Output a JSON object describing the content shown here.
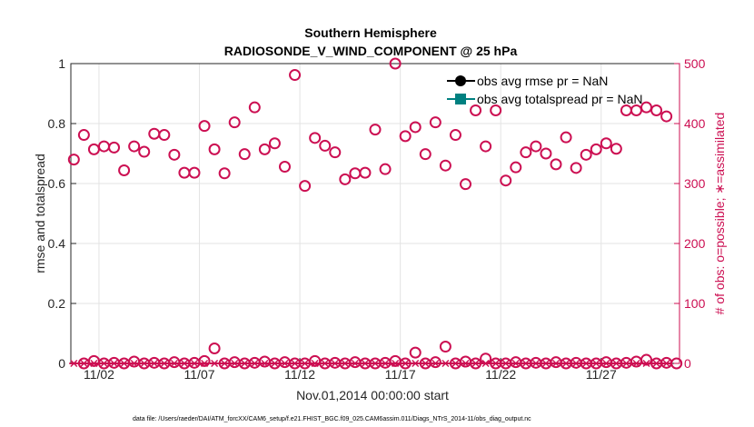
{
  "chart_data": {
    "type": "scatter",
    "title": "Southern Hemisphere",
    "subtitle": "RADIOSONDE_V_WIND_COMPONENT @ 25 hPa",
    "xlabel": "Nov.01,2014 00:00:00 start",
    "ylabel": "rmse and totalspread",
    "y2label": "# of obs: o=possible; ∗=assimilated",
    "xlim": [
      0.6,
      30.9
    ],
    "ylim": [
      0,
      1
    ],
    "y2lim": [
      0,
      500
    ],
    "xticks": [
      2,
      7,
      12,
      17,
      22,
      27
    ],
    "xtick_labels": [
      "11/02",
      "11/07",
      "11/12",
      "11/17",
      "11/22",
      "11/27"
    ],
    "yticks": [
      0,
      0.2,
      0.4,
      0.6,
      0.8,
      1
    ],
    "ytick_labels": [
      "0",
      "0.2",
      "0.4",
      "0.6",
      "0.8",
      "1"
    ],
    "y2ticks": [
      0,
      100,
      200,
      300,
      400,
      500
    ],
    "y2tick_labels": [
      "0",
      "100",
      "200",
      "300",
      "400",
      "500"
    ],
    "legend": [
      {
        "label": "obs avg rmse pr = NaN",
        "color": "#000000",
        "marker": "circle"
      },
      {
        "label": "obs avg totalspread pr = NaN",
        "color": "#008080",
        "marker": "square"
      }
    ],
    "legend_position": "top-right",
    "footer": "data file: /Users/raeder/DAI/ATM_forcXX/CAM6_setup/f.e21.FHIST_BGC.f09_025.CAM6assim.011/Diags_NTrS_2014-11/obs_diag_output.nc",
    "colors": {
      "obs": "#cc0f52",
      "axis": "#262626",
      "grid": "#e3e3e3"
    },
    "series": [
      {
        "name": "possible obs (o)",
        "axis": "right",
        "x": [
          0.75,
          1.25,
          1.75,
          2.25,
          2.75,
          3.25,
          3.75,
          4.25,
          4.75,
          5.25,
          5.75,
          6.25,
          6.75,
          7.25,
          7.75,
          8.25,
          8.75,
          9.25,
          9.75,
          10.25,
          10.75,
          11.25,
          11.75,
          12.25,
          12.75,
          13.25,
          13.75,
          14.25,
          14.75,
          15.25,
          15.75,
          16.25,
          16.75,
          17.25,
          17.75,
          18.25,
          18.75,
          19.25,
          19.75,
          20.25,
          20.75,
          21.25,
          21.75,
          22.25,
          22.75,
          23.25,
          23.75,
          24.25,
          24.75,
          25.25,
          25.75,
          26.25,
          26.75,
          27.25,
          27.75,
          28.25,
          28.75,
          29.25,
          29.75,
          30.25
        ],
        "values": [
          340,
          381,
          357,
          362,
          360,
          322,
          362,
          353,
          383,
          381,
          348,
          318,
          318,
          396,
          357,
          317,
          402,
          349,
          427,
          357,
          367,
          328,
          481,
          296,
          376,
          363,
          352,
          307,
          317,
          318,
          390,
          324,
          500,
          379,
          394,
          349,
          402,
          330,
          381,
          299,
          422,
          362,
          422,
          305,
          327,
          352,
          362,
          350,
          332,
          377,
          326,
          348,
          357,
          367,
          358,
          422,
          422,
          427,
          422,
          412
        ]
      },
      {
        "name": "assimilated obs (∗)",
        "axis": "right",
        "x": [
          0.75,
          1.25,
          1.75,
          2.25,
          2.75,
          3.25,
          3.75,
          4.25,
          4.75,
          5.25,
          5.75,
          6.25,
          6.75,
          7.25,
          7.75,
          8.25,
          8.75,
          9.25,
          9.75,
          10.25,
          10.75,
          11.25,
          11.75,
          12.25,
          12.75,
          13.25,
          13.75,
          14.25,
          14.75,
          15.25,
          15.75,
          16.25,
          16.75,
          17.25,
          17.75,
          18.25,
          18.75,
          19.25,
          19.75,
          20.25,
          20.75,
          21.25,
          21.75,
          22.25,
          22.75,
          23.25,
          23.75,
          24.25,
          24.75,
          25.25,
          25.75,
          26.25,
          26.75,
          27.25,
          27.75,
          28.25,
          28.75,
          29.25,
          29.75,
          30.25
        ],
        "values": [
          0,
          0,
          0,
          0,
          0,
          0,
          0,
          0,
          0,
          0,
          0,
          0,
          0,
          0,
          0,
          0,
          0,
          0,
          0,
          0,
          0,
          0,
          0,
          0,
          0,
          0,
          0,
          0,
          0,
          0,
          0,
          0,
          0,
          0,
          0,
          0,
          0,
          0,
          0,
          0,
          0,
          0,
          0,
          0,
          0,
          0,
          0,
          0,
          0,
          0,
          0,
          0,
          0,
          0,
          0,
          0,
          0,
          0,
          0,
          0
        ]
      },
      {
        "name": "low possible obs (o)",
        "axis": "right",
        "x": [
          1.25,
          1.75,
          2.25,
          2.75,
          3.25,
          3.75,
          4.25,
          4.75,
          5.25,
          5.75,
          6.25,
          6.75,
          7.25,
          7.75,
          8.25,
          8.75,
          9.25,
          9.75,
          10.25,
          10.75,
          11.25,
          11.75,
          12.25,
          12.75,
          13.25,
          13.75,
          14.25,
          14.75,
          15.25,
          15.75,
          16.25,
          16.75,
          17.25,
          17.75,
          18.25,
          18.75,
          19.25,
          19.75,
          20.25,
          20.75,
          21.25,
          21.75,
          22.25,
          22.75,
          23.25,
          23.75,
          24.25,
          24.75,
          25.25,
          25.75,
          26.25,
          26.75,
          27.25,
          27.75,
          28.25,
          28.75,
          29.25,
          29.75,
          30.25,
          30.75
        ],
        "values": [
          0,
          4,
          0,
          1,
          0,
          3,
          0,
          1,
          0,
          2,
          0,
          1,
          4,
          25,
          0,
          2,
          0,
          1,
          3,
          0,
          2,
          0,
          0,
          4,
          0,
          1,
          0,
          2,
          0,
          0,
          1,
          4,
          0,
          18,
          0,
          2,
          28,
          0,
          3,
          0,
          8,
          0,
          0,
          2,
          0,
          1,
          0,
          2,
          0,
          1,
          0,
          0,
          2,
          0,
          1,
          3,
          6,
          0,
          1,
          0
        ]
      }
    ]
  }
}
